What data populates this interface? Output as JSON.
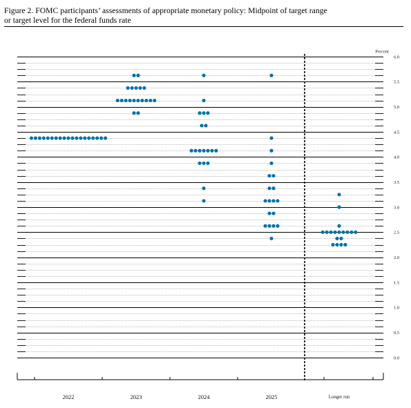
{
  "caption": {
    "line1": "Figure 2.  FOMC participants’ assessments of appropriate monetary policy:  Midpoint of target range",
    "line2": "or target level for the federal funds rate"
  },
  "chart_data": {
    "type": "scatter",
    "title": "",
    "ylabel": "Percent",
    "ylim": [
      0.0,
      6.0
    ],
    "y_ticks": [
      "6.0",
      "5.5",
      "5.0",
      "4.5",
      "4.0",
      "3.5",
      "3.0",
      "2.5",
      "2.0",
      "1.5",
      "1.0",
      "0.5",
      "0.0"
    ],
    "categories": [
      "2022",
      "2023",
      "2024",
      "2025",
      "Longer run"
    ],
    "grid": true,
    "series_color": "#0073a8",
    "dots": [
      {
        "category": "2022",
        "values": [
          {
            "y": 4.375,
            "count": 19
          }
        ]
      },
      {
        "category": "2023",
        "values": [
          {
            "y": 5.625,
            "count": 2
          },
          {
            "y": 5.375,
            "count": 5
          },
          {
            "y": 5.125,
            "count": 10
          },
          {
            "y": 4.875,
            "count": 2
          }
        ]
      },
      {
        "category": "2024",
        "values": [
          {
            "y": 5.625,
            "count": 1
          },
          {
            "y": 5.125,
            "count": 1
          },
          {
            "y": 4.875,
            "count": 3
          },
          {
            "y": 4.625,
            "count": 2
          },
          {
            "y": 4.125,
            "count": 7
          },
          {
            "y": 3.875,
            "count": 3
          },
          {
            "y": 3.375,
            "count": 1
          },
          {
            "y": 3.125,
            "count": 1
          }
        ]
      },
      {
        "category": "2025",
        "values": [
          {
            "y": 5.625,
            "count": 1
          },
          {
            "y": 4.375,
            "count": 1
          },
          {
            "y": 4.125,
            "count": 1
          },
          {
            "y": 3.875,
            "count": 1
          },
          {
            "y": 3.625,
            "count": 2
          },
          {
            "y": 3.375,
            "count": 2
          },
          {
            "y": 3.125,
            "count": 4
          },
          {
            "y": 2.875,
            "count": 2
          },
          {
            "y": 2.625,
            "count": 4
          },
          {
            "y": 2.375,
            "count": 1
          }
        ]
      },
      {
        "category": "Longer run",
        "values": [
          {
            "y": 3.25,
            "count": 1
          },
          {
            "y": 3.0,
            "count": 1
          },
          {
            "y": 2.625,
            "count": 1
          },
          {
            "y": 2.5,
            "count": 9
          },
          {
            "y": 2.375,
            "count": 2
          },
          {
            "y": 2.25,
            "count": 4
          }
        ]
      }
    ]
  }
}
